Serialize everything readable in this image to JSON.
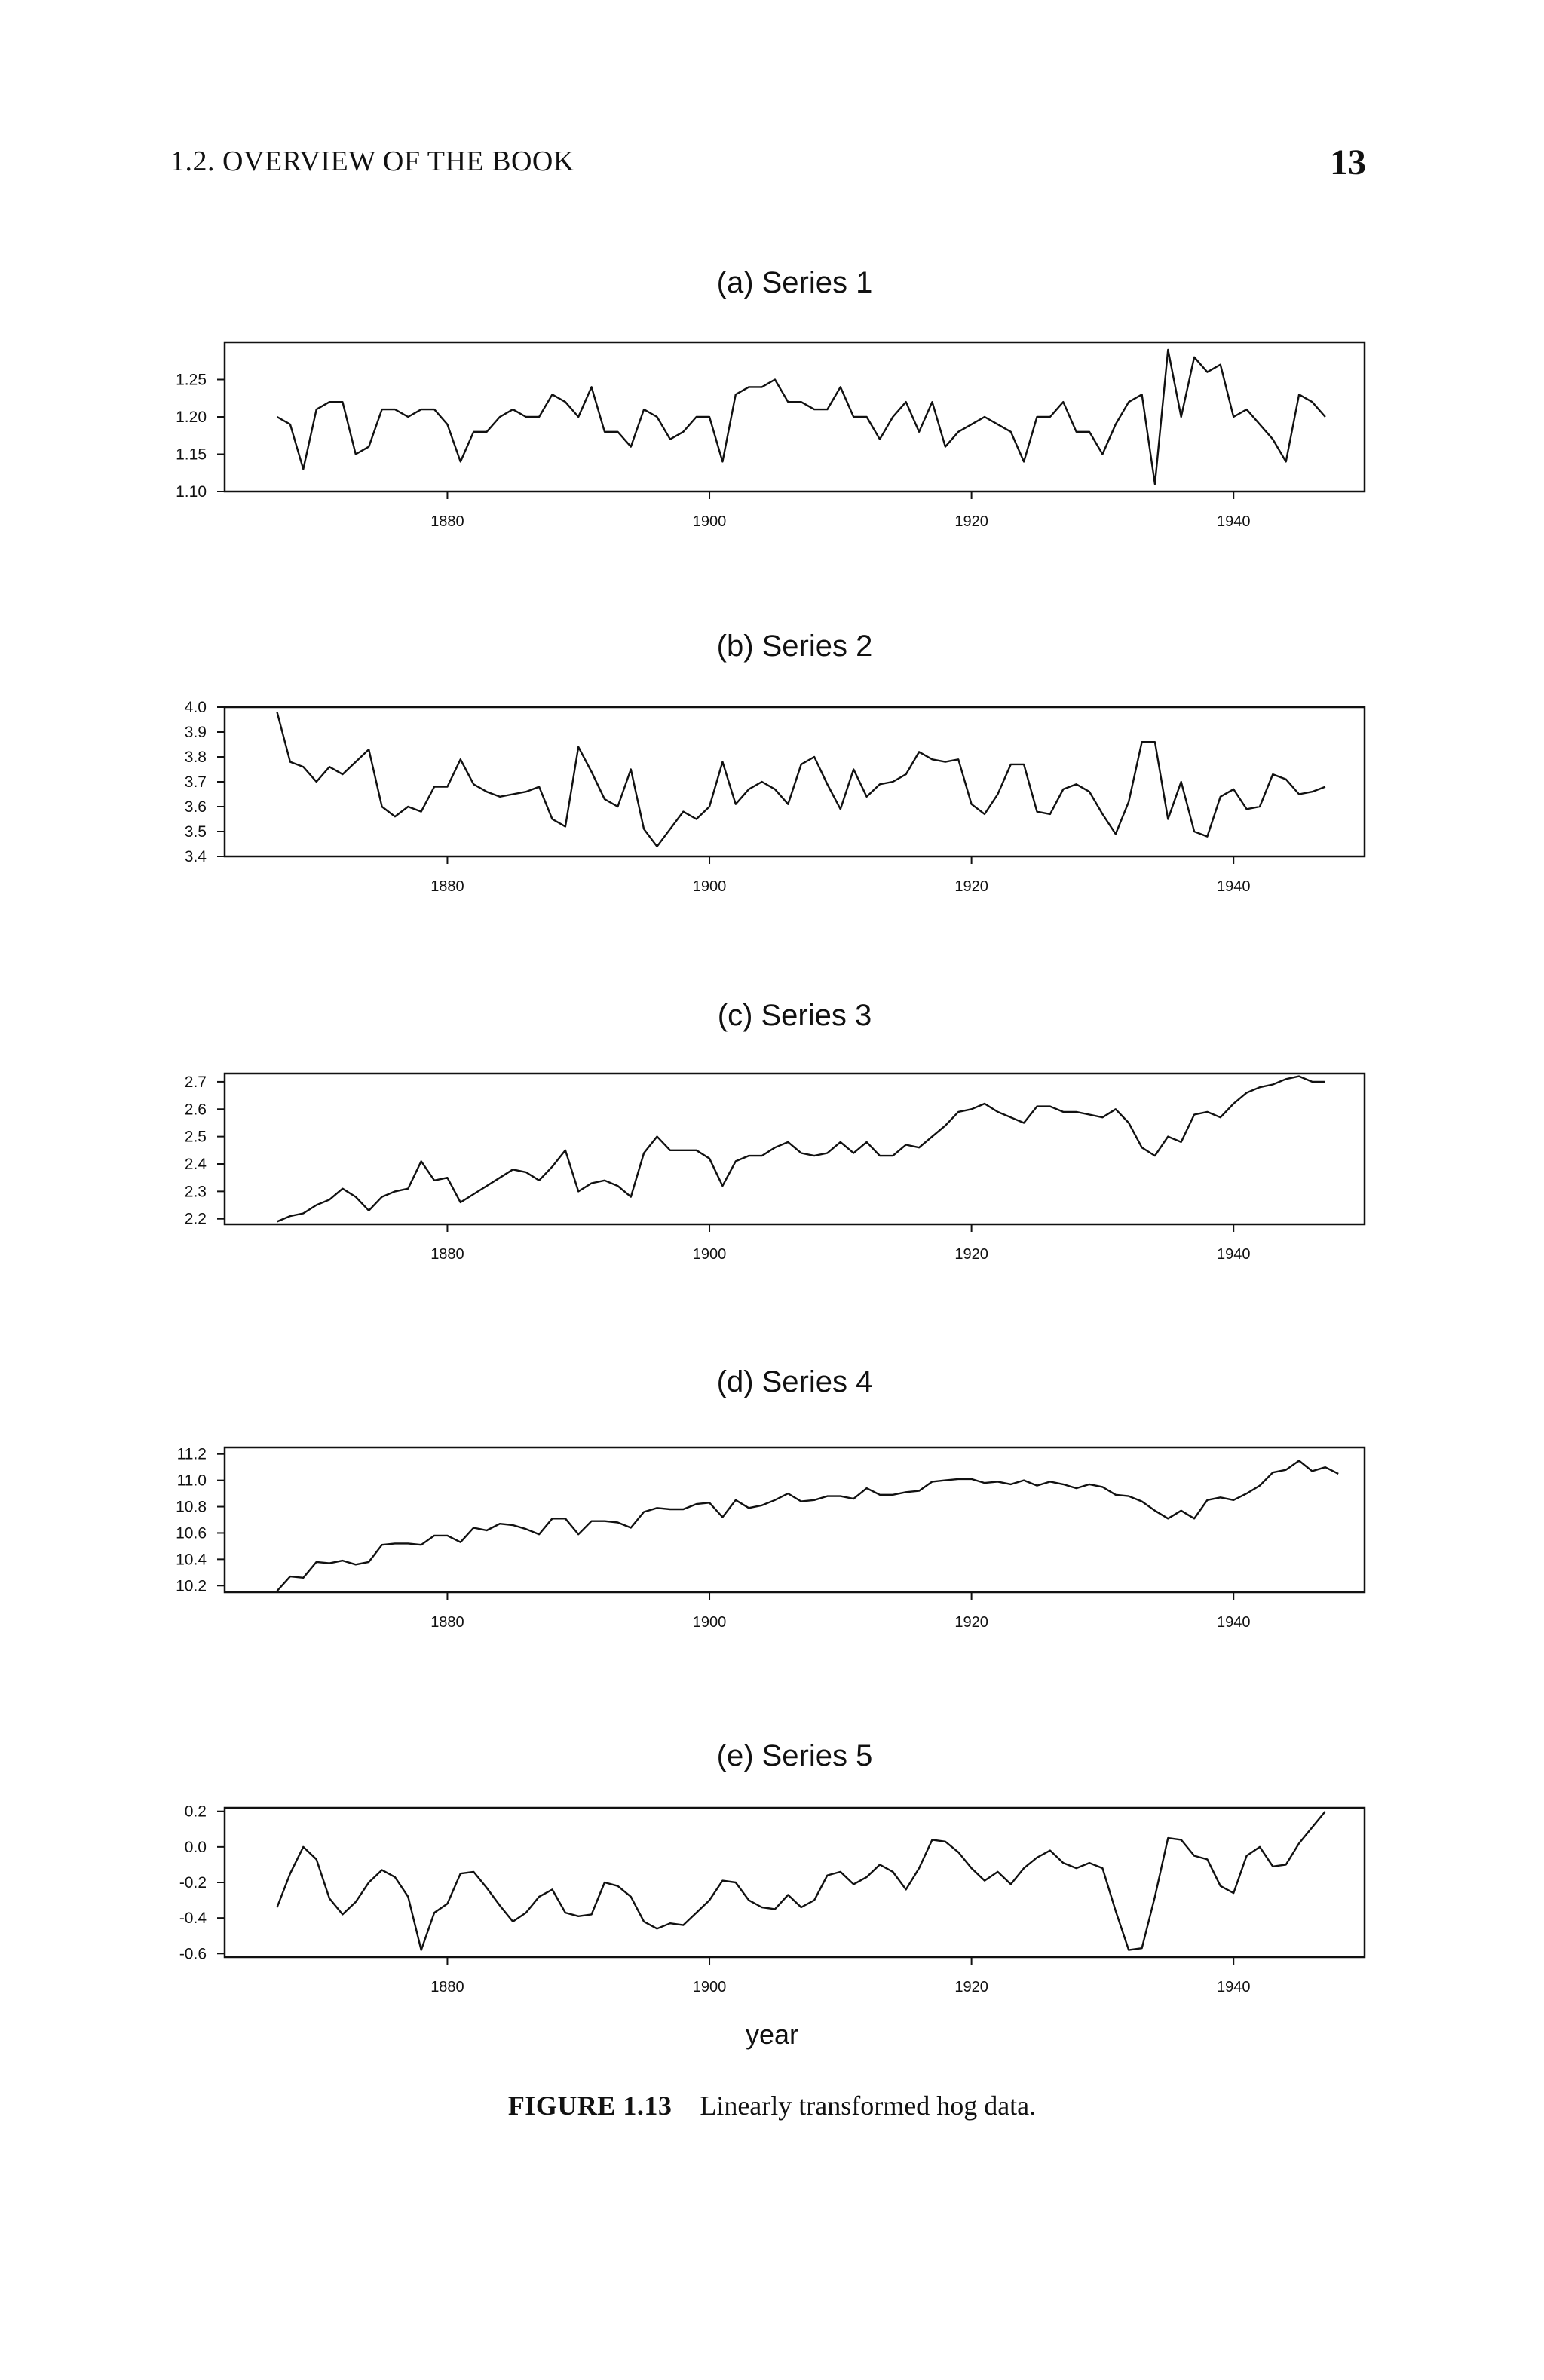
{
  "header": {
    "section": "1.2. OVERVIEW OF THE BOOK",
    "page_number": "13"
  },
  "xlabel": "year",
  "caption": {
    "figure_label": "FIGURE 1.13",
    "text": "Linearly transformed hog data."
  },
  "chart_data": [
    {
      "type": "line",
      "title": "(a) Series 1",
      "xlim": [
        1863,
        1950
      ],
      "ylim": [
        1.1,
        1.3
      ],
      "xticks": [
        1880,
        1900,
        1920,
        1940
      ],
      "yticks": [
        1.25,
        1.2,
        1.15,
        1.1
      ],
      "ytick_labels": [
        "1.25",
        "1.20",
        "1.15",
        "1.10"
      ],
      "x_start": 1867,
      "values": [
        1.2,
        1.19,
        1.13,
        1.21,
        1.22,
        1.22,
        1.15,
        1.16,
        1.21,
        1.21,
        1.2,
        1.21,
        1.21,
        1.19,
        1.14,
        1.18,
        1.18,
        1.2,
        1.21,
        1.2,
        1.2,
        1.23,
        1.22,
        1.2,
        1.24,
        1.18,
        1.18,
        1.16,
        1.21,
        1.2,
        1.17,
        1.18,
        1.2,
        1.2,
        1.14,
        1.23,
        1.24,
        1.24,
        1.25,
        1.22,
        1.22,
        1.21,
        1.21,
        1.24,
        1.2,
        1.2,
        1.17,
        1.2,
        1.22,
        1.18,
        1.22,
        1.16,
        1.18,
        1.19,
        1.2,
        1.19,
        1.18,
        1.14,
        1.2,
        1.2,
        1.22,
        1.18,
        1.18,
        1.15,
        1.19,
        1.22,
        1.23,
        1.11,
        1.29,
        1.2,
        1.28,
        1.26,
        1.27,
        1.2,
        1.21,
        1.19,
        1.17,
        1.14,
        1.23,
        1.22,
        1.2
      ]
    },
    {
      "type": "line",
      "title": "(b) Series 2",
      "xlim": [
        1863,
        1950
      ],
      "ylim": [
        3.4,
        4.0
      ],
      "xticks": [
        1880,
        1900,
        1920,
        1940
      ],
      "yticks": [
        4.0,
        3.9,
        3.8,
        3.7,
        3.6,
        3.5,
        3.4
      ],
      "ytick_labels": [
        "4.0",
        "3.9",
        "3.8",
        "3.7",
        "3.6",
        "3.5",
        "3.4"
      ],
      "x_start": 1867,
      "values": [
        3.98,
        3.78,
        3.76,
        3.7,
        3.76,
        3.73,
        3.78,
        3.83,
        3.6,
        3.56,
        3.6,
        3.58,
        3.68,
        3.68,
        3.79,
        3.69,
        3.66,
        3.64,
        3.65,
        3.66,
        3.68,
        3.55,
        3.52,
        3.84,
        3.74,
        3.63,
        3.6,
        3.75,
        3.51,
        3.44,
        3.51,
        3.58,
        3.55,
        3.6,
        3.78,
        3.61,
        3.67,
        3.7,
        3.67,
        3.61,
        3.77,
        3.8,
        3.69,
        3.59,
        3.75,
        3.64,
        3.69,
        3.7,
        3.73,
        3.82,
        3.79,
        3.78,
        3.79,
        3.61,
        3.57,
        3.65,
        3.77,
        3.77,
        3.58,
        3.57,
        3.67,
        3.69,
        3.66,
        3.57,
        3.49,
        3.62,
        3.86,
        3.86,
        3.55,
        3.7,
        3.5,
        3.48,
        3.64,
        3.67,
        3.59,
        3.6,
        3.73,
        3.71,
        3.65,
        3.66,
        3.68
      ]
    },
    {
      "type": "line",
      "title": "(c) Series 3",
      "xlim": [
        1863,
        1950
      ],
      "ylim": [
        2.18,
        2.73
      ],
      "xticks": [
        1880,
        1900,
        1920,
        1940
      ],
      "yticks": [
        2.7,
        2.6,
        2.5,
        2.4,
        2.3,
        2.2
      ],
      "ytick_labels": [
        "2.7",
        "2.6",
        "2.5",
        "2.4",
        "2.3",
        "2.2"
      ],
      "x_start": 1867,
      "values": [
        2.19,
        2.21,
        2.22,
        2.25,
        2.27,
        2.31,
        2.28,
        2.23,
        2.28,
        2.3,
        2.31,
        2.41,
        2.34,
        2.35,
        2.26,
        2.29,
        2.32,
        2.35,
        2.38,
        2.37,
        2.34,
        2.39,
        2.45,
        2.3,
        2.33,
        2.34,
        2.32,
        2.28,
        2.44,
        2.5,
        2.45,
        2.45,
        2.45,
        2.42,
        2.32,
        2.41,
        2.43,
        2.43,
        2.46,
        2.48,
        2.44,
        2.43,
        2.44,
        2.48,
        2.44,
        2.48,
        2.43,
        2.43,
        2.47,
        2.46,
        2.5,
        2.54,
        2.59,
        2.6,
        2.62,
        2.59,
        2.57,
        2.55,
        2.61,
        2.61,
        2.59,
        2.59,
        2.58,
        2.57,
        2.6,
        2.55,
        2.46,
        2.43,
        2.5,
        2.48,
        2.58,
        2.59,
        2.57,
        2.62,
        2.66,
        2.68,
        2.69,
        2.71,
        2.72,
        2.7,
        2.7
      ]
    },
    {
      "type": "line",
      "title": "(d) Series 4",
      "xlim": [
        1863,
        1950
      ],
      "ylim": [
        10.15,
        11.25
      ],
      "xticks": [
        1880,
        1900,
        1920,
        1940
      ],
      "yticks": [
        11.2,
        11.0,
        10.8,
        10.6,
        10.4,
        10.2
      ],
      "ytick_labels": [
        "11.2",
        "11.0",
        "10.8",
        "10.6",
        "10.4",
        "10.2"
      ],
      "x_start": 1867,
      "values": [
        10.16,
        10.27,
        10.26,
        10.38,
        10.37,
        10.39,
        10.36,
        10.38,
        10.51,
        10.52,
        10.52,
        10.51,
        10.58,
        10.58,
        10.53,
        10.64,
        10.62,
        10.67,
        10.66,
        10.63,
        10.59,
        10.71,
        10.71,
        10.59,
        10.69,
        10.69,
        10.68,
        10.64,
        10.76,
        10.79,
        10.78,
        10.78,
        10.82,
        10.83,
        10.72,
        10.85,
        10.79,
        10.81,
        10.85,
        10.9,
        10.84,
        10.85,
        10.88,
        10.88,
        10.86,
        10.94,
        10.89,
        10.89,
        10.91,
        10.92,
        10.99,
        11.0,
        11.01,
        11.01,
        10.98,
        10.99,
        10.97,
        11.0,
        10.96,
        10.99,
        10.97,
        10.94,
        10.97,
        10.95,
        10.89,
        10.88,
        10.84,
        10.77,
        10.71,
        10.77,
        10.71,
        10.85,
        10.87,
        10.85,
        10.9,
        10.96,
        11.06,
        11.08,
        11.15,
        11.07,
        11.1,
        11.05
      ]
    },
    {
      "type": "line",
      "title": "(e) Series 5",
      "xlim": [
        1863,
        1950
      ],
      "ylim": [
        -0.62,
        0.22
      ],
      "xticks": [
        1880,
        1900,
        1920,
        1940
      ],
      "yticks": [
        0.2,
        0.0,
        -0.2,
        -0.4,
        -0.6
      ],
      "ytick_labels": [
        "0.2",
        "0.0",
        "-0.2",
        "-0.4",
        "-0.6"
      ],
      "x_start": 1867,
      "values": [
        -0.34,
        -0.15,
        0.0,
        -0.07,
        -0.29,
        -0.38,
        -0.31,
        -0.2,
        -0.13,
        -0.17,
        -0.28,
        -0.58,
        -0.37,
        -0.32,
        -0.15,
        -0.14,
        -0.23,
        -0.33,
        -0.42,
        -0.37,
        -0.28,
        -0.24,
        -0.37,
        -0.39,
        -0.38,
        -0.2,
        -0.22,
        -0.28,
        -0.42,
        -0.46,
        -0.43,
        -0.44,
        -0.37,
        -0.3,
        -0.19,
        -0.2,
        -0.3,
        -0.34,
        -0.35,
        -0.27,
        -0.34,
        -0.3,
        -0.16,
        -0.14,
        -0.21,
        -0.17,
        -0.1,
        -0.14,
        -0.24,
        -0.12,
        0.04,
        0.03,
        -0.03,
        -0.12,
        -0.19,
        -0.14,
        -0.21,
        -0.12,
        -0.06,
        -0.02,
        -0.09,
        -0.12,
        -0.09,
        -0.12,
        -0.36,
        -0.58,
        -0.57,
        -0.28,
        0.05,
        0.04,
        -0.05,
        -0.07,
        -0.22,
        -0.26,
        -0.05,
        0.0,
        -0.11,
        -0.1,
        0.02,
        0.11,
        0.2
      ]
    }
  ]
}
